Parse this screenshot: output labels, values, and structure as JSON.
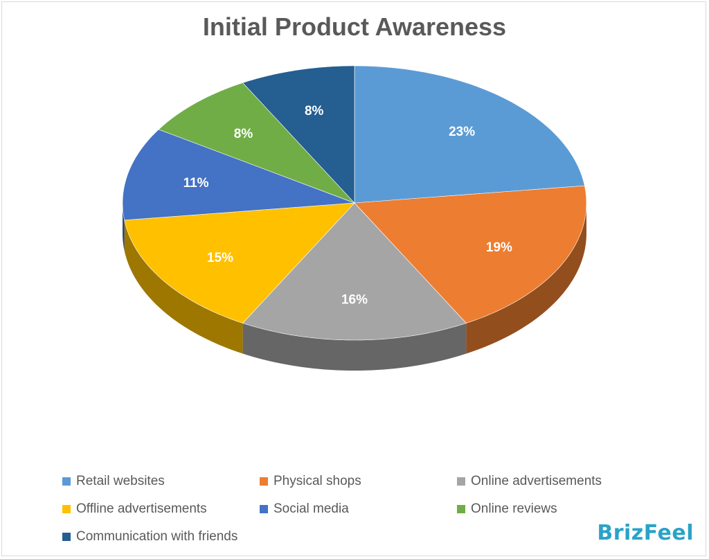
{
  "chart_data": {
    "type": "pie",
    "title": "Initial Product Awareness",
    "categories": [
      "Retail websites",
      "Physical shops",
      "Online advertisements",
      "Offline advertisements",
      "Social media",
      "Online reviews",
      "Communication with friends"
    ],
    "values": [
      23,
      19,
      16,
      15,
      11,
      8,
      8
    ],
    "labels": [
      "23%",
      "19%",
      "16%",
      "15%",
      "11%",
      "8%",
      "8%"
    ],
    "colors": [
      "#5b9bd5",
      "#ed7d31",
      "#a5a5a5",
      "#ffc000",
      "#4472c4",
      "#70ad47",
      "#255e91"
    ],
    "legend_position": "bottom",
    "style": "3d"
  },
  "watermark": "BrizFeel"
}
